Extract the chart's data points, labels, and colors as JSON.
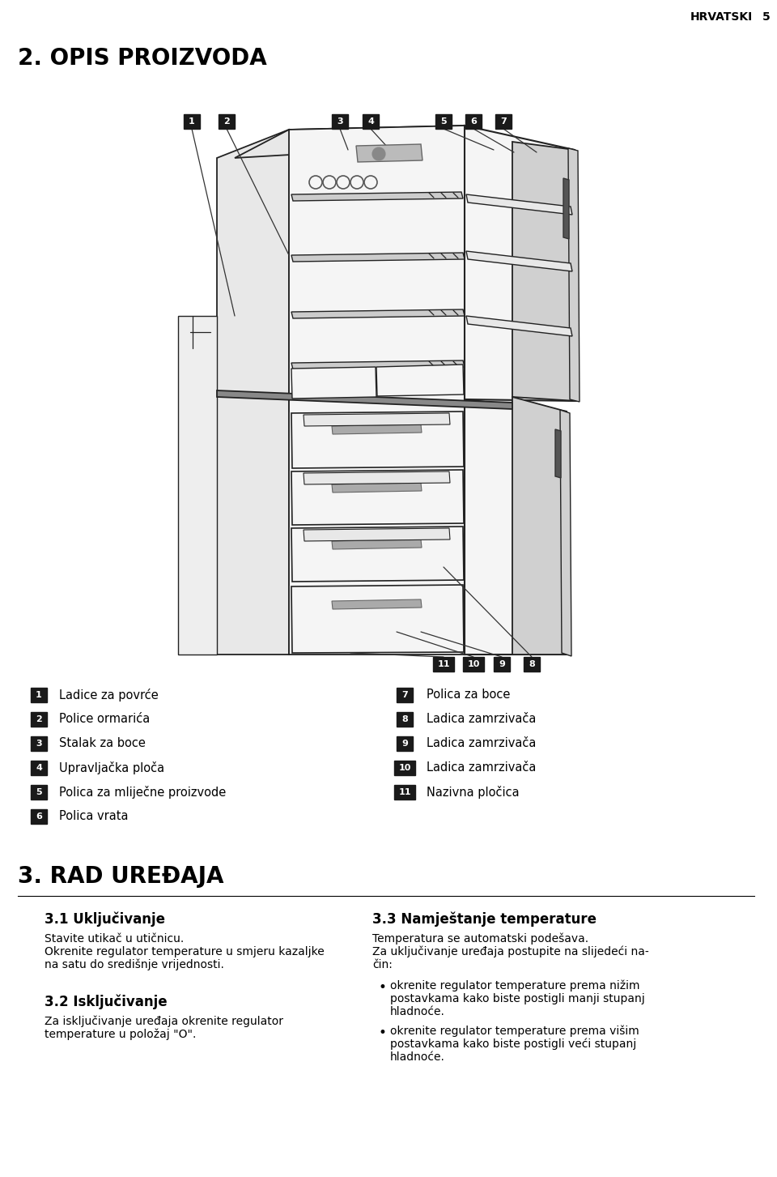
{
  "page_header": "HRVATSKI",
  "page_number": "5",
  "section2_title": "2. OPIS PROIZVODA",
  "section3_title": "3. RAD UREĐAJA",
  "sub31_title": "3.1 Uključivanje",
  "sub32_title": "3.2 Isključivanje",
  "sub33_title": "3.3 Namještanje temperature",
  "text31_line1": "Stavite utikač u utičnicu.",
  "text31_line2": "Okrenite regulator temperature u smjeru kazaljke",
  "text31_line3": "na satu do središnje vrijednosti.",
  "text32_line1": "Za isključivanje uređaja okrenite regulator",
  "text32_line2": "temperature u položaj \"O\".",
  "text33a_line1": "Temperatura se automatski podešava.",
  "text33a_line2": "Za uključivanje uređaja postupite na slijedeći na-",
  "text33a_line3": "čin:",
  "text33b_line1": "okrenite regulator temperature prema nižim",
  "text33b_line2": "postavkama kako biste postigli manji stupanj",
  "text33b_line3": "hladnoće.",
  "text33c_line1": "okrenite regulator temperature prema višim",
  "text33c_line2": "postavkama kako biste postigli veći stupanj",
  "text33c_line3": "hladnoće.",
  "labels_left": [
    {
      "num": "1",
      "text": "Ladice za povrće"
    },
    {
      "num": "2",
      "text": "Police ormarića"
    },
    {
      "num": "3",
      "text": "Stalak za boce"
    },
    {
      "num": "4",
      "text": "Upravljačka ploča"
    },
    {
      "num": "5",
      "text": "Polica za mliječne proizvode"
    },
    {
      "num": "6",
      "text": "Polica vrata"
    }
  ],
  "labels_right": [
    {
      "num": "7",
      "text": "Polica za boce"
    },
    {
      "num": "8",
      "text": "Ladica zamrzivača"
    },
    {
      "num": "9",
      "text": "Ladica zamrzivača"
    },
    {
      "num": "10",
      "text": "Ladica zamrzivača"
    },
    {
      "num": "11",
      "text": "Nazivna pločica"
    }
  ],
  "bg_color": "#ffffff",
  "text_color": "#000000",
  "badge_bg": "#1a1a1a",
  "badge_fg": "#ffffff",
  "diagram_line_color": "#222222",
  "diagram_fill_light": "#f5f5f5",
  "diagram_fill_mid": "#e8e8e8",
  "diagram_fill_dark": "#d0d0d0"
}
